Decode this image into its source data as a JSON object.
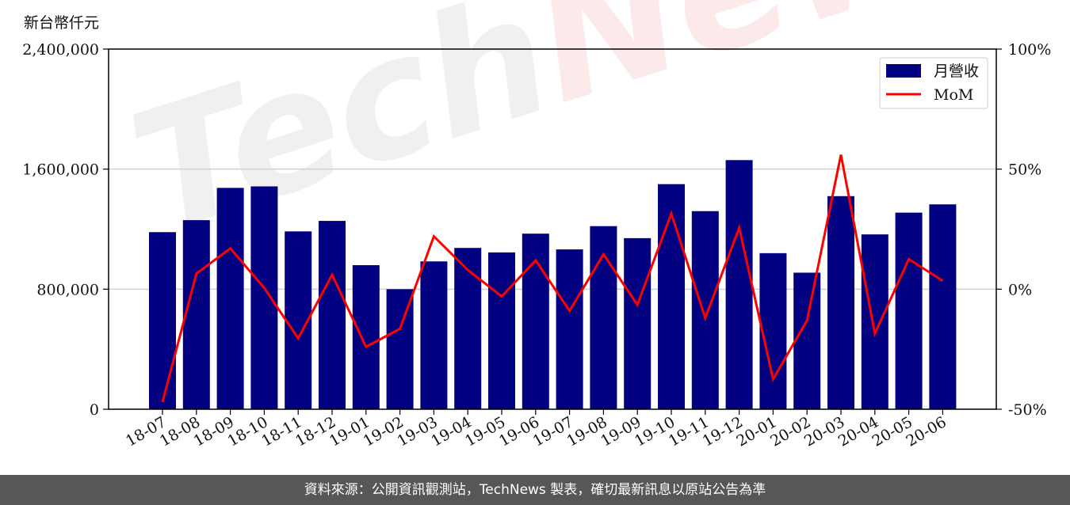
{
  "unit_label": "新台幣仟元",
  "footer_text": "資料來源：公開資訊觀測站，TechNews 製表，確切最新訊息以原站公告為準",
  "watermark": {
    "part1": "Tech",
    "part2": "News"
  },
  "colors": {
    "bar": "#000080",
    "line": "#ff0000",
    "grid": "#d0d0d0",
    "footer_bg": "#575757"
  },
  "chart_data": {
    "type": "bar",
    "categories": [
      "18-07",
      "18-08",
      "18-09",
      "18-10",
      "18-11",
      "18-12",
      "19-01",
      "19-02",
      "19-03",
      "19-04",
      "19-05",
      "19-06",
      "19-07",
      "19-08",
      "19-09",
      "19-10",
      "19-11",
      "19-12",
      "20-01",
      "20-02",
      "20-03",
      "20-04",
      "20-05",
      "20-06"
    ],
    "series": [
      {
        "name": "月營收",
        "type": "bar",
        "axis": "left",
        "values": [
          1180000,
          1260000,
          1475000,
          1485000,
          1185000,
          1255000,
          960000,
          800000,
          985000,
          1075000,
          1045000,
          1170000,
          1065000,
          1220000,
          1140000,
          1500000,
          1320000,
          1660000,
          1040000,
          910000,
          1420000,
          1165000,
          1310000,
          1365000
        ]
      },
      {
        "name": "MoM",
        "type": "line",
        "axis": "right",
        "values": [
          -47,
          6.5,
          17,
          0.5,
          -20.5,
          6,
          -24,
          -16.5,
          22,
          8,
          -3,
          12,
          -9,
          14.5,
          -6.5,
          31.5,
          -12,
          25.5,
          -37.5,
          -13,
          56,
          -18.5,
          12.5,
          3.5
        ]
      }
    ],
    "y_left": {
      "lim": [
        0,
        2400000
      ],
      "ticks": [
        "0",
        "800,000",
        "1,600,000",
        "2,400,000"
      ],
      "tick_values": [
        0,
        800000,
        1600000,
        2400000
      ]
    },
    "y_right": {
      "lim": [
        -50,
        100
      ],
      "ticks": [
        "-50%",
        "0%",
        "50%",
        "100%"
      ],
      "tick_values": [
        -50,
        0,
        50,
        100
      ]
    },
    "grid": "horizontal",
    "legend_position": "top-right"
  }
}
